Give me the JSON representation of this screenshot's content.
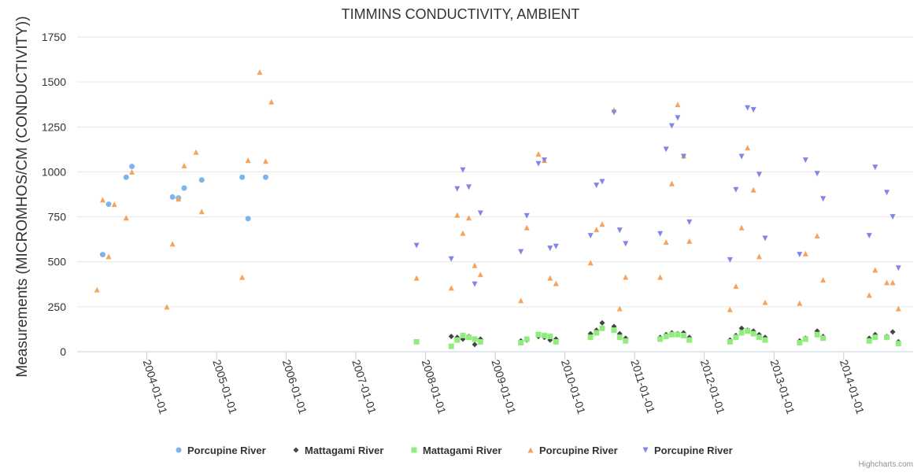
{
  "chart_data": {
    "type": "scatter",
    "title": "TIMMINS CONDUCTIVITY, AMBIENT",
    "ylabel": "Measurements (MICROMHOS/CM (CONDUCTIVITY))",
    "xlabel": "",
    "ylim": [
      0,
      1750
    ],
    "xlim": [
      "2003-01-01",
      "2014-12-31"
    ],
    "y_ticks": [
      0,
      250,
      500,
      750,
      1000,
      1250,
      1500,
      1750
    ],
    "x_ticks": [
      "2004-01-01",
      "2005-01-01",
      "2006-01-01",
      "2007-01-01",
      "2008-01-01",
      "2009-01-01",
      "2010-01-01",
      "2011-01-01",
      "2012-01-01",
      "2013-01-01",
      "2014-01-01"
    ],
    "grid": "horizontal",
    "legend": "bottom-center",
    "series": [
      {
        "name": "Porcupine River",
        "marker": "circle",
        "color": "#7cb5ec",
        "points": [
          [
            "2003-05-15",
            540
          ],
          [
            "2003-06-15",
            820
          ],
          [
            "2003-09-15",
            970
          ],
          [
            "2003-10-15",
            1030
          ],
          [
            "2004-05-15",
            860
          ],
          [
            "2004-06-15",
            855
          ],
          [
            "2004-07-15",
            910
          ],
          [
            "2004-10-15",
            955
          ],
          [
            "2005-05-15",
            970
          ],
          [
            "2005-06-15",
            740
          ],
          [
            "2005-09-15",
            970
          ]
        ]
      },
      {
        "name": "Mattagami River",
        "marker": "diamond",
        "color": "#434348",
        "points": [
          [
            "2008-05-15",
            85
          ],
          [
            "2008-06-15",
            80
          ],
          [
            "2008-07-15",
            70
          ],
          [
            "2008-08-15",
            85
          ],
          [
            "2008-09-15",
            40
          ],
          [
            "2008-10-15",
            70
          ],
          [
            "2009-05-15",
            60
          ],
          [
            "2009-06-15",
            65
          ],
          [
            "2009-08-15",
            85
          ],
          [
            "2009-09-15",
            80
          ],
          [
            "2009-10-15",
            65
          ],
          [
            "2009-11-15",
            70
          ],
          [
            "2010-05-15",
            100
          ],
          [
            "2010-06-15",
            120
          ],
          [
            "2010-07-15",
            160
          ],
          [
            "2010-09-15",
            140
          ],
          [
            "2010-10-15",
            100
          ],
          [
            "2010-11-15",
            75
          ],
          [
            "2011-05-15",
            80
          ],
          [
            "2011-06-15",
            95
          ],
          [
            "2011-07-15",
            105
          ],
          [
            "2011-08-15",
            100
          ],
          [
            "2011-09-15",
            105
          ],
          [
            "2011-10-15",
            80
          ],
          [
            "2012-05-15",
            65
          ],
          [
            "2012-06-15",
            90
          ],
          [
            "2012-07-15",
            130
          ],
          [
            "2012-08-15",
            120
          ],
          [
            "2012-09-15",
            115
          ],
          [
            "2012-10-15",
            95
          ],
          [
            "2012-11-15",
            80
          ],
          [
            "2013-05-15",
            60
          ],
          [
            "2013-06-15",
            75
          ],
          [
            "2013-08-15",
            115
          ],
          [
            "2013-09-15",
            85
          ],
          [
            "2014-05-15",
            75
          ],
          [
            "2014-06-15",
            95
          ],
          [
            "2014-08-15",
            85
          ],
          [
            "2014-09-15",
            110
          ],
          [
            "2014-10-15",
            55
          ]
        ]
      },
      {
        "name": "Mattagami River",
        "marker": "square",
        "color": "#90ed7d",
        "points": [
          [
            "2007-11-15",
            55
          ],
          [
            "2008-05-15",
            30
          ],
          [
            "2008-06-15",
            65
          ],
          [
            "2008-07-15",
            90
          ],
          [
            "2008-08-15",
            80
          ],
          [
            "2008-09-15",
            70
          ],
          [
            "2008-10-15",
            55
          ],
          [
            "2009-05-15",
            50
          ],
          [
            "2009-06-15",
            70
          ],
          [
            "2009-08-15",
            95
          ],
          [
            "2009-09-15",
            90
          ],
          [
            "2009-10-15",
            85
          ],
          [
            "2009-11-15",
            55
          ],
          [
            "2010-05-15",
            80
          ],
          [
            "2010-06-15",
            105
          ],
          [
            "2010-07-15",
            130
          ],
          [
            "2010-09-15",
            120
          ],
          [
            "2010-10-15",
            80
          ],
          [
            "2010-11-15",
            60
          ],
          [
            "2011-05-15",
            70
          ],
          [
            "2011-06-15",
            85
          ],
          [
            "2011-07-15",
            95
          ],
          [
            "2011-08-15",
            95
          ],
          [
            "2011-09-15",
            90
          ],
          [
            "2011-10-15",
            65
          ],
          [
            "2012-05-15",
            55
          ],
          [
            "2012-06-15",
            80
          ],
          [
            "2012-07-15",
            105
          ],
          [
            "2012-08-15",
            115
          ],
          [
            "2012-09-15",
            100
          ],
          [
            "2012-10-15",
            80
          ],
          [
            "2012-11-15",
            65
          ],
          [
            "2013-05-15",
            50
          ],
          [
            "2013-06-15",
            70
          ],
          [
            "2013-08-15",
            95
          ],
          [
            "2013-09-15",
            75
          ],
          [
            "2014-05-15",
            60
          ],
          [
            "2014-06-15",
            80
          ],
          [
            "2014-08-15",
            80
          ],
          [
            "2014-10-15",
            45
          ]
        ]
      },
      {
        "name": "Porcupine River",
        "marker": "triangle",
        "color": "#f7a35c",
        "points": [
          [
            "2003-04-15",
            345
          ],
          [
            "2003-05-15",
            845
          ],
          [
            "2003-06-15",
            530
          ],
          [
            "2003-07-15",
            820
          ],
          [
            "2003-09-15",
            745
          ],
          [
            "2003-10-15",
            1000
          ],
          [
            "2004-04-15",
            250
          ],
          [
            "2004-05-15",
            600
          ],
          [
            "2004-06-15",
            850
          ],
          [
            "2004-07-15",
            1035
          ],
          [
            "2004-09-15",
            1110
          ],
          [
            "2004-10-15",
            780
          ],
          [
            "2005-05-15",
            415
          ],
          [
            "2005-06-15",
            1065
          ],
          [
            "2005-08-15",
            1555
          ],
          [
            "2005-09-15",
            1060
          ],
          [
            "2005-10-15",
            1390
          ],
          [
            "2007-11-15",
            410
          ],
          [
            "2008-05-15",
            355
          ],
          [
            "2008-06-15",
            760
          ],
          [
            "2008-07-15",
            660
          ],
          [
            "2008-08-15",
            745
          ],
          [
            "2008-09-15",
            480
          ],
          [
            "2008-10-15",
            430
          ],
          [
            "2009-05-15",
            285
          ],
          [
            "2009-06-15",
            690
          ],
          [
            "2009-08-15",
            1100
          ],
          [
            "2009-09-15",
            1065
          ],
          [
            "2009-10-15",
            410
          ],
          [
            "2009-11-15",
            380
          ],
          [
            "2010-05-15",
            495
          ],
          [
            "2010-06-15",
            680
          ],
          [
            "2010-07-15",
            710
          ],
          [
            "2010-09-15",
            1345
          ],
          [
            "2010-10-15",
            240
          ],
          [
            "2010-11-15",
            415
          ],
          [
            "2011-05-15",
            415
          ],
          [
            "2011-06-15",
            610
          ],
          [
            "2011-07-15",
            935
          ],
          [
            "2011-08-15",
            1375
          ],
          [
            "2011-09-15",
            1090
          ],
          [
            "2011-10-15",
            615
          ],
          [
            "2012-05-15",
            235
          ],
          [
            "2012-06-15",
            365
          ],
          [
            "2012-07-15",
            690
          ],
          [
            "2012-08-15",
            1135
          ],
          [
            "2012-09-15",
            900
          ],
          [
            "2012-10-15",
            530
          ],
          [
            "2012-11-15",
            275
          ],
          [
            "2013-05-15",
            270
          ],
          [
            "2013-06-15",
            545
          ],
          [
            "2013-08-15",
            645
          ],
          [
            "2013-09-15",
            400
          ],
          [
            "2014-05-15",
            315
          ],
          [
            "2014-06-15",
            455
          ],
          [
            "2014-08-15",
            385
          ],
          [
            "2014-09-15",
            385
          ],
          [
            "2014-10-15",
            240
          ]
        ]
      },
      {
        "name": "Porcupine River",
        "marker": "triangle-down",
        "color": "#8085e9",
        "points": [
          [
            "2007-11-15",
            590
          ],
          [
            "2008-05-15",
            515
          ],
          [
            "2008-06-15",
            905
          ],
          [
            "2008-07-15",
            1010
          ],
          [
            "2008-08-15",
            915
          ],
          [
            "2008-09-15",
            375
          ],
          [
            "2008-10-15",
            770
          ],
          [
            "2009-05-15",
            555
          ],
          [
            "2009-06-15",
            755
          ],
          [
            "2009-08-15",
            1045
          ],
          [
            "2009-09-15",
            1065
          ],
          [
            "2009-10-15",
            575
          ],
          [
            "2009-11-15",
            585
          ],
          [
            "2010-05-15",
            645
          ],
          [
            "2010-06-15",
            925
          ],
          [
            "2010-07-15",
            945
          ],
          [
            "2010-09-15",
            1330
          ],
          [
            "2010-10-15",
            675
          ],
          [
            "2010-11-15",
            600
          ],
          [
            "2011-05-15",
            655
          ],
          [
            "2011-06-15",
            1125
          ],
          [
            "2011-07-15",
            1255
          ],
          [
            "2011-08-15",
            1300
          ],
          [
            "2011-09-15",
            1085
          ],
          [
            "2011-10-15",
            720
          ],
          [
            "2012-05-15",
            510
          ],
          [
            "2012-06-15",
            900
          ],
          [
            "2012-07-15",
            1085
          ],
          [
            "2012-08-15",
            1355
          ],
          [
            "2012-09-15",
            1345
          ],
          [
            "2012-10-15",
            985
          ],
          [
            "2012-11-15",
            630
          ],
          [
            "2013-05-15",
            540
          ],
          [
            "2013-06-15",
            1065
          ],
          [
            "2013-08-15",
            990
          ],
          [
            "2013-09-15",
            850
          ],
          [
            "2014-05-15",
            645
          ],
          [
            "2014-06-15",
            1025
          ],
          [
            "2014-08-15",
            885
          ],
          [
            "2014-09-15",
            750
          ],
          [
            "2014-10-15",
            465
          ]
        ]
      }
    ]
  },
  "credit": "Highcharts.com"
}
